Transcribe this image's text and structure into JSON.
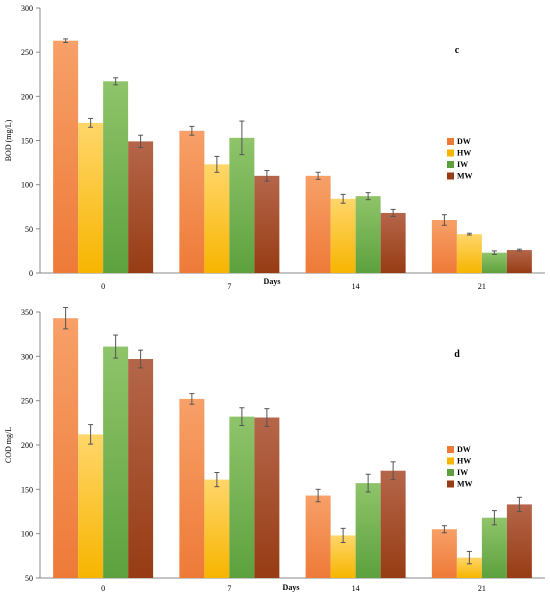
{
  "colors": {
    "DW": [
      "#f7a068",
      "#ee7a38"
    ],
    "HW": [
      "#ffd66a",
      "#f7b500"
    ],
    "IW": [
      "#8fc46a",
      "#5da13e"
    ],
    "MW": [
      "#b5664a",
      "#973c14"
    ]
  },
  "chart_data": [
    {
      "type": "bar",
      "panel_label": "c",
      "title": "",
      "xlabel": "Days",
      "ylabel": "BOD (mg/L)",
      "ylim": [
        0,
        300
      ],
      "yticks": [
        0,
        50,
        100,
        150,
        200,
        250,
        300
      ],
      "categories": [
        "0",
        "7",
        "14",
        "21"
      ],
      "legend_position": "right",
      "series": [
        {
          "name": "DW",
          "values": [
            263,
            161,
            110,
            60
          ],
          "errors": [
            2,
            5,
            4,
            6
          ]
        },
        {
          "name": "HW",
          "values": [
            170,
            123,
            84,
            44
          ],
          "errors": [
            5,
            9,
            5,
            1
          ]
        },
        {
          "name": "IW",
          "values": [
            217,
            153,
            87,
            23
          ],
          "errors": [
            4,
            19,
            4,
            2
          ]
        },
        {
          "name": "MW",
          "values": [
            149,
            110,
            68,
            26
          ],
          "errors": [
            7,
            6,
            4,
            1
          ]
        }
      ]
    },
    {
      "type": "bar",
      "panel_label": "d",
      "title": "",
      "xlabel": "Days",
      "ylabel": "COD mg/L",
      "ylim": [
        50,
        350
      ],
      "yticks": [
        50,
        100,
        150,
        200,
        250,
        300,
        350
      ],
      "categories": [
        "0",
        "7",
        "14",
        "21"
      ],
      "legend_position": "right",
      "series": [
        {
          "name": "DW",
          "values": [
            343,
            252,
            143,
            105
          ],
          "errors": [
            12,
            6,
            7,
            4
          ]
        },
        {
          "name": "HW",
          "values": [
            212,
            161,
            98,
            73
          ],
          "errors": [
            11,
            8,
            8,
            7
          ]
        },
        {
          "name": "IW",
          "values": [
            311,
            232,
            157,
            118
          ],
          "errors": [
            13,
            10,
            10,
            8
          ]
        },
        {
          "name": "MW",
          "values": [
            297,
            231,
            171,
            133
          ],
          "errors": [
            10,
            10,
            10,
            8
          ]
        }
      ]
    }
  ]
}
